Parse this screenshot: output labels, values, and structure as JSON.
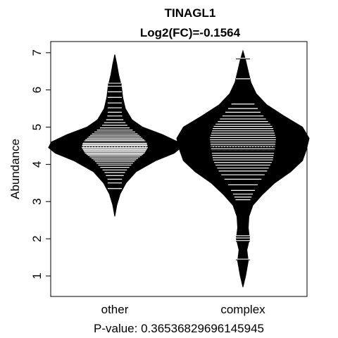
{
  "chart_data": {
    "type": "beanplot",
    "title": "TINAGL1",
    "subtitle": "Log2(FC)=-0.1564",
    "xlabel": "P-value: 0.36536829696145945",
    "ylabel": "Abundance",
    "categories": [
      "other",
      "complex"
    ],
    "yticks": [
      1,
      2,
      3,
      4,
      5,
      6,
      7
    ],
    "ylim": [
      0.45,
      7.3
    ],
    "overall_mean": 4.47,
    "grid": false,
    "legend": "none",
    "series": [
      {
        "category": "other",
        "mean": 4.6,
        "min": 2.6,
        "max": 6.95,
        "density": [
          [
            2.6,
            0.0
          ],
          [
            2.9,
            0.03
          ],
          [
            3.2,
            0.08
          ],
          [
            3.5,
            0.17
          ],
          [
            3.8,
            0.32
          ],
          [
            4.1,
            0.62
          ],
          [
            4.3,
            0.9
          ],
          [
            4.45,
            1.0
          ],
          [
            4.6,
            0.96
          ],
          [
            4.8,
            0.72
          ],
          [
            5.0,
            0.42
          ],
          [
            5.2,
            0.26
          ],
          [
            5.5,
            0.16
          ],
          [
            5.8,
            0.12
          ],
          [
            6.1,
            0.1
          ],
          [
            6.4,
            0.06
          ],
          [
            6.7,
            0.03
          ],
          [
            6.95,
            0.0
          ]
        ],
        "points": [
          3.35,
          3.5,
          3.6,
          3.7,
          3.78,
          3.85,
          3.92,
          3.98,
          4.03,
          4.08,
          4.12,
          4.16,
          4.2,
          4.24,
          4.27,
          4.3,
          4.33,
          4.36,
          4.39,
          4.42,
          4.45,
          4.48,
          4.51,
          4.54,
          4.57,
          4.6,
          4.63,
          4.66,
          4.7,
          4.74,
          4.78,
          4.82,
          4.87,
          4.92,
          4.98,
          5.05,
          5.12,
          5.2,
          5.3,
          5.4,
          5.52,
          5.65,
          5.8,
          5.95,
          6.1,
          6.18
        ]
      },
      {
        "category": "complex",
        "mean": 4.35,
        "min": 0.7,
        "max": 7.05,
        "density": [
          [
            0.7,
            0.0
          ],
          [
            1.0,
            0.04
          ],
          [
            1.4,
            0.08
          ],
          [
            1.7,
            0.06
          ],
          [
            2.0,
            0.1
          ],
          [
            2.3,
            0.08
          ],
          [
            2.6,
            0.09
          ],
          [
            2.9,
            0.15
          ],
          [
            3.2,
            0.3
          ],
          [
            3.5,
            0.48
          ],
          [
            3.8,
            0.72
          ],
          [
            4.1,
            0.9
          ],
          [
            4.4,
            0.96
          ],
          [
            4.7,
            1.0
          ],
          [
            5.0,
            0.9
          ],
          [
            5.3,
            0.62
          ],
          [
            5.6,
            0.36
          ],
          [
            5.9,
            0.2
          ],
          [
            6.2,
            0.12
          ],
          [
            6.5,
            0.08
          ],
          [
            6.8,
            0.04
          ],
          [
            7.05,
            0.0
          ]
        ],
        "points": [
          1.45,
          1.95,
          2.02,
          2.08,
          3.05,
          3.12,
          3.2,
          3.3,
          3.45,
          3.6,
          3.72,
          3.82,
          3.9,
          3.98,
          4.05,
          4.12,
          4.18,
          4.24,
          4.3,
          4.36,
          4.42,
          4.48,
          4.54,
          4.6,
          4.66,
          4.72,
          4.78,
          4.84,
          4.9,
          4.96,
          5.02,
          5.08,
          5.15,
          5.22,
          5.3,
          5.4,
          5.5,
          5.62,
          6.3,
          6.85
        ]
      }
    ]
  }
}
